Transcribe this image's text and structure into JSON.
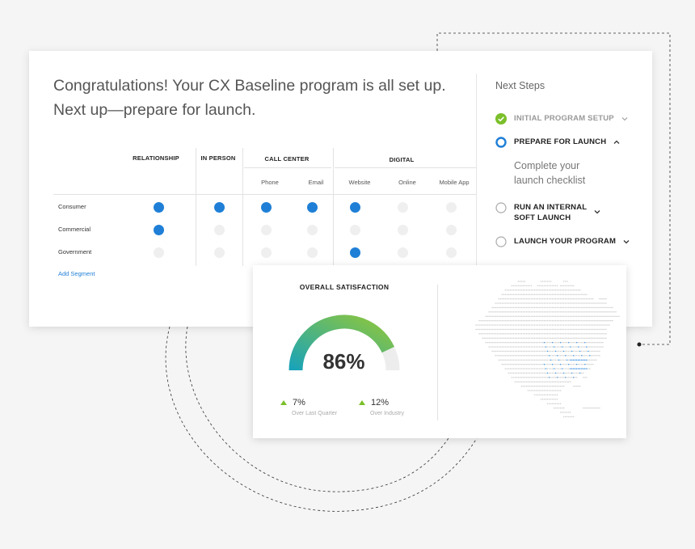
{
  "headline": {
    "line1": "Congratulations! Your CX Baseline program is all set up.",
    "line2": "Next up—prepare for launch."
  },
  "grid": {
    "headers": {
      "relationship": "RELATIONSHIP",
      "in_person": "IN PERSON",
      "call_center": "CALL CENTER",
      "digital": "DIGITAL"
    },
    "subheaders": [
      "Phone",
      "Email",
      "Website",
      "Online",
      "Mobile App"
    ],
    "rows": [
      {
        "label": "Consumer",
        "cells": [
          true,
          true,
          true,
          true,
          true,
          false,
          false
        ]
      },
      {
        "label": "Commercial",
        "cells": [
          true,
          false,
          false,
          false,
          false,
          false,
          false
        ]
      },
      {
        "label": "Government",
        "cells": [
          false,
          false,
          false,
          false,
          true,
          false,
          false
        ]
      }
    ],
    "add_segment": "Add Segment"
  },
  "next_steps": {
    "title": "Next Steps",
    "steps": [
      {
        "label": "INITIAL PROGRAM SETUP",
        "status": "complete"
      },
      {
        "label": "PREPARE FOR LAUNCH",
        "status": "current"
      },
      {
        "label": "RUN AN INTERNAL",
        "label2": "SOFT LAUNCH",
        "status": "pending"
      },
      {
        "label": "LAUNCH YOUR PROGRAM",
        "status": "pending"
      }
    ],
    "current_description_line1": "Complete your",
    "current_description_line2": "launch checklist"
  },
  "satisfaction": {
    "title": "OVERALL SATISFACTION",
    "value": "86%",
    "gauge_fraction": 0.86,
    "kpis": [
      {
        "value": "7%",
        "caption": "Over Last Quarter"
      },
      {
        "value": "12%",
        "caption": "Over Industry"
      }
    ]
  },
  "colors": {
    "dot_active": "#1f7fd6",
    "dot_inactive": "#efefef",
    "check_green": "#7bbf2a",
    "gauge_start": "#1aa3b8",
    "gauge_end": "#8cc63f",
    "link": "#1f7fd6"
  },
  "icons": {
    "step_complete": "check-circle-icon",
    "step_current": "ring-icon",
    "step_pending": "empty-circle-icon",
    "expand": "chevron-down-icon",
    "collapse": "chevron-up-icon",
    "trend": "triangle-up-icon"
  }
}
